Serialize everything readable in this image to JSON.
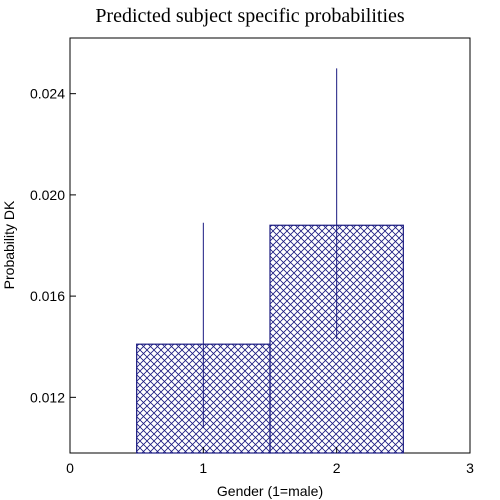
{
  "chart_data": {
    "type": "bar",
    "title": "Predicted subject specific probabilities",
    "xlabel": "Gender (1=male)",
    "ylabel": "Probability DK",
    "xlim": [
      0,
      3
    ],
    "ylim": [
      0.0098,
      0.0262
    ],
    "x_ticks": [
      0,
      1,
      2,
      3
    ],
    "y_ticks": [
      0.012,
      0.016,
      0.02,
      0.024
    ],
    "y_tick_labels": [
      "0.012",
      "0.016",
      "0.020",
      "0.024"
    ],
    "bar_fill": "crosshatch",
    "grid": false,
    "bars": [
      {
        "x": 1,
        "x_start": 0.5,
        "x_end": 1.5,
        "value": 0.0141,
        "ci_low": 0.0108,
        "ci_high": 0.0189
      },
      {
        "x": 2,
        "x_start": 1.5,
        "x_end": 2.5,
        "value": 0.0188,
        "ci_low": 0.0143,
        "ci_high": 0.025
      }
    ]
  },
  "colors": {
    "bar_stroke": "#1a1a80",
    "hatch": "#1a1a80",
    "error_bar": "#1a1a80",
    "axis": "#000000"
  }
}
